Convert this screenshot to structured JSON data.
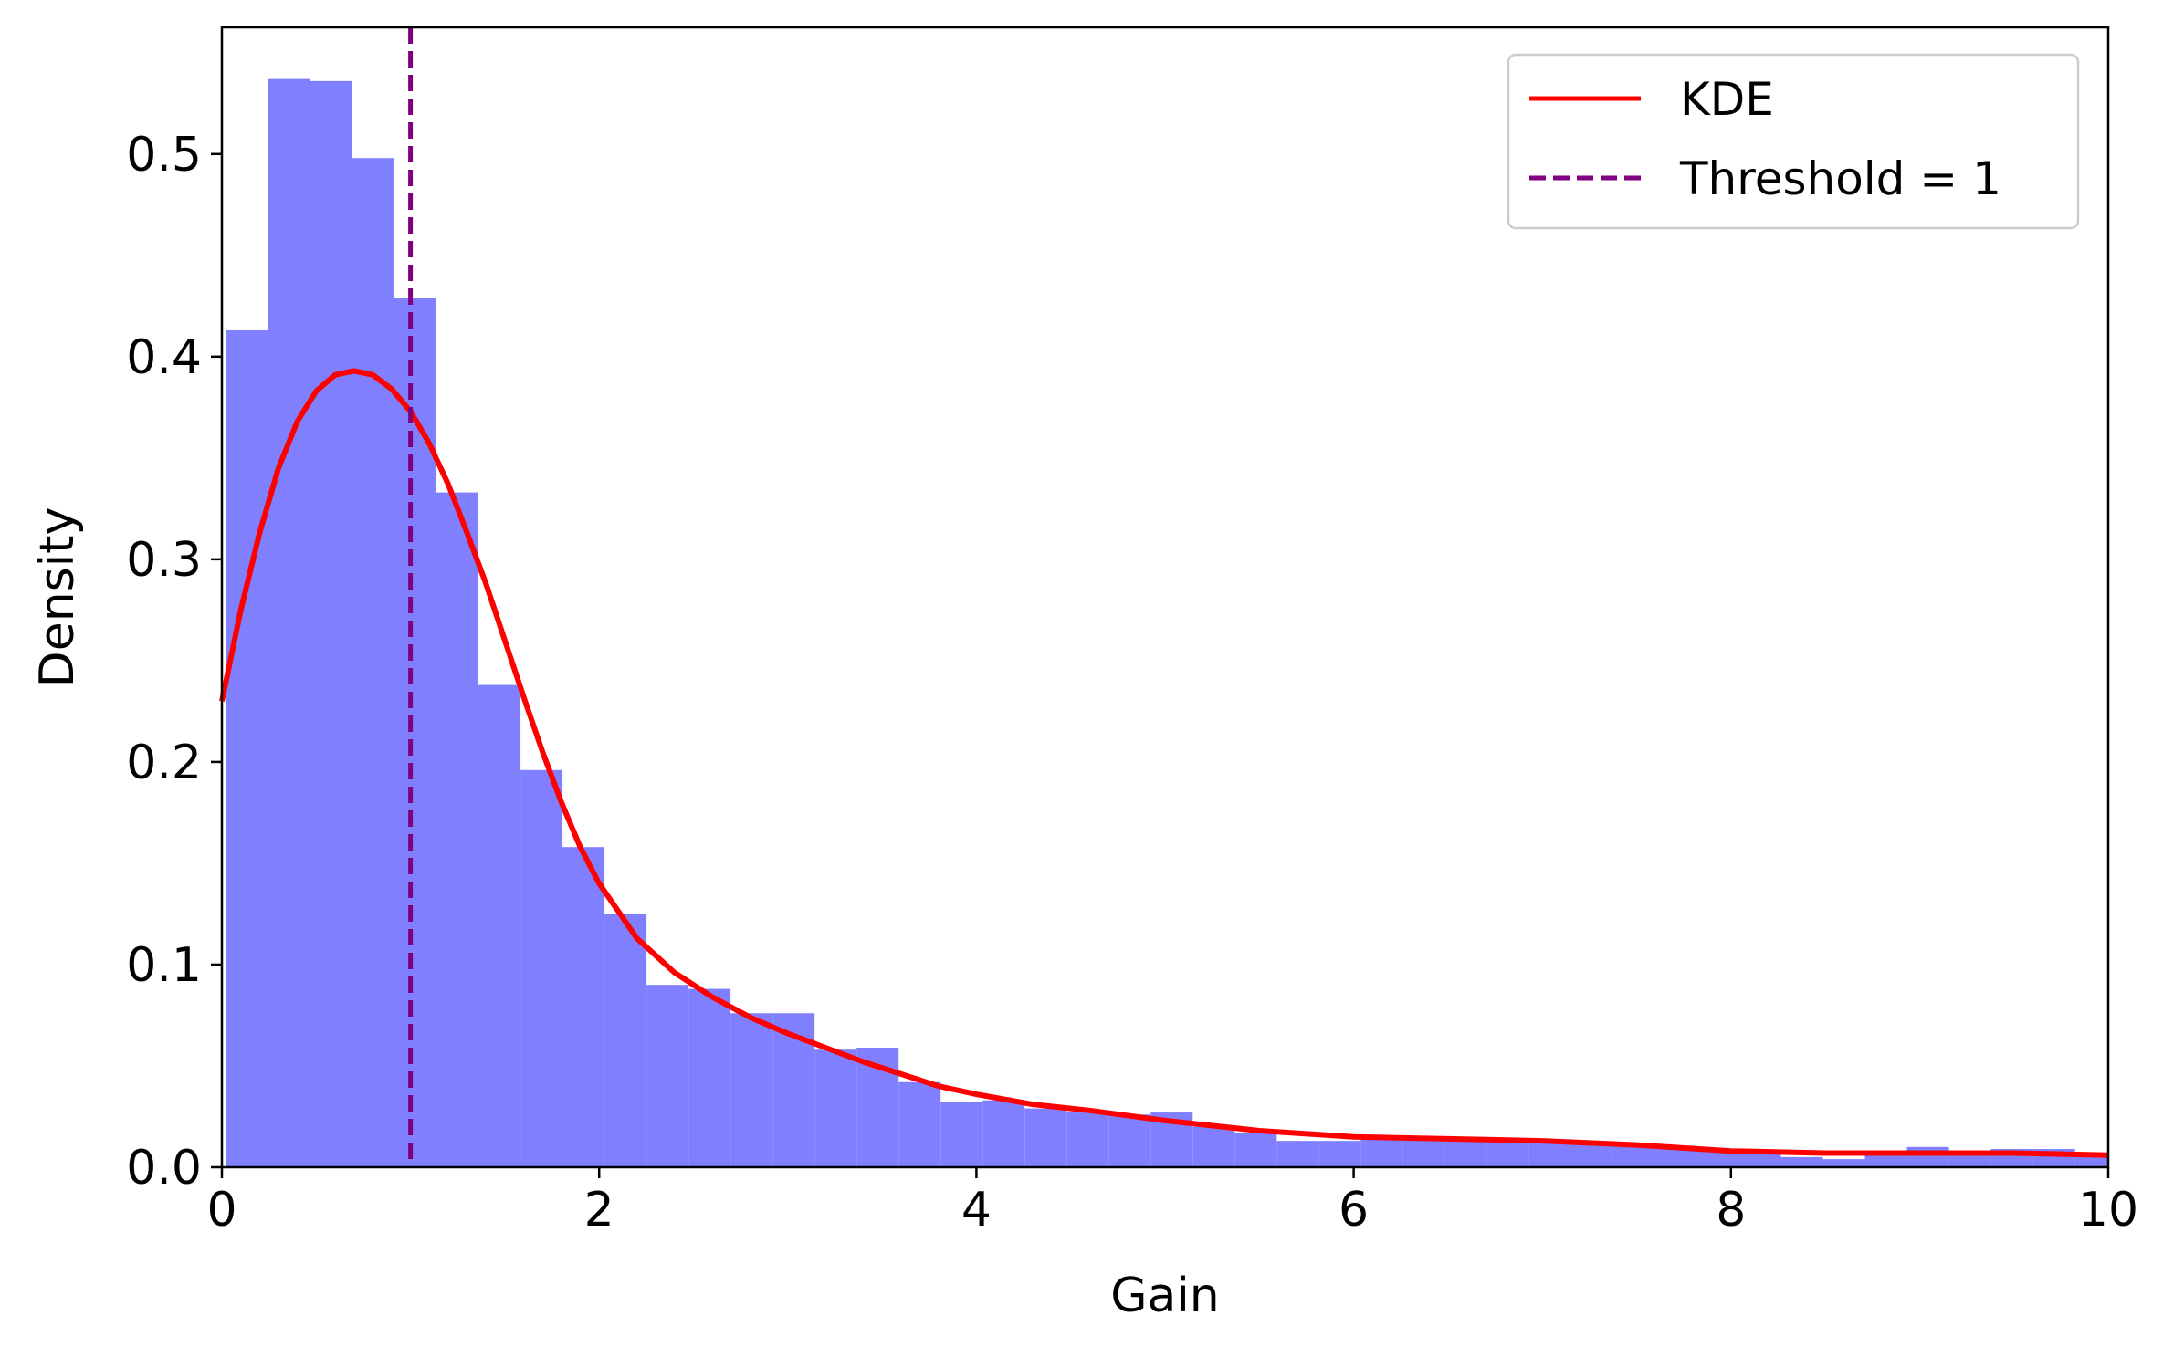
{
  "chart_data": {
    "type": "bar",
    "xlabel": "Gain",
    "ylabel": "Density",
    "xlim": [
      0,
      10
    ],
    "ylim": [
      0,
      0.5625
    ],
    "xticks": [
      0,
      2,
      4,
      6,
      8,
      10
    ],
    "yticks": [
      0.0,
      0.1,
      0.2,
      0.3,
      0.4,
      0.5
    ],
    "grid": false,
    "legend_position": "top-right",
    "histogram": {
      "name": "",
      "color": "#8080ff",
      "bin_edges": [
        0.0239,
        0.2467,
        0.4694,
        0.6921,
        0.9148,
        1.1376,
        1.3603,
        1.583,
        1.8057,
        2.0285,
        2.2512,
        2.4739,
        2.6966,
        2.9194,
        3.1421,
        3.3648,
        3.5876,
        3.8103,
        4.033,
        4.2557,
        4.4785,
        4.7012,
        4.9239,
        5.1466,
        5.3694,
        5.5921,
        5.8148,
        6.0375,
        6.2603,
        6.483,
        6.7057,
        6.9284,
        7.1512,
        7.3739,
        7.5966,
        7.8193,
        8.0421,
        8.2648,
        8.4875,
        8.7102,
        8.933,
        9.1557,
        9.3784,
        9.6011,
        9.8239,
        10.05
      ],
      "values": [
        0.413,
        0.537,
        0.536,
        0.498,
        0.429,
        0.333,
        0.238,
        0.196,
        0.158,
        0.125,
        0.09,
        0.088,
        0.076,
        0.076,
        0.058,
        0.059,
        0.042,
        0.032,
        0.033,
        0.029,
        0.027,
        0.026,
        0.027,
        0.02,
        0.017,
        0.013,
        0.013,
        0.014,
        0.015,
        0.013,
        0.014,
        0.012,
        0.012,
        0.011,
        0.009,
        0.008,
        0.007,
        0.005,
        0.004,
        0.007,
        0.01,
        0.006,
        0.009,
        0.009,
        0.005
      ]
    },
    "series": [
      {
        "name": "KDE",
        "type": "line",
        "color": "#ff0000",
        "x": [
          0,
          0.1,
          0.2,
          0.3,
          0.4,
          0.5,
          0.6,
          0.7,
          0.75,
          0.8,
          0.9,
          1.0,
          1.1,
          1.2,
          1.3,
          1.4,
          1.5,
          1.6,
          1.7,
          1.8,
          1.9,
          2.0,
          2.2,
          2.4,
          2.6,
          2.8,
          3.0,
          3.2,
          3.4,
          3.6,
          3.8,
          4.0,
          4.3,
          4.6,
          5.0,
          5.5,
          6.0,
          6.5,
          7.0,
          7.5,
          8.0,
          8.5,
          9.0,
          9.5,
          10.0
        ],
        "y": [
          0.23,
          0.275,
          0.313,
          0.345,
          0.368,
          0.383,
          0.391,
          0.393,
          0.392,
          0.391,
          0.384,
          0.373,
          0.357,
          0.337,
          0.313,
          0.288,
          0.26,
          0.232,
          0.205,
          0.18,
          0.158,
          0.14,
          0.113,
          0.096,
          0.084,
          0.074,
          0.066,
          0.059,
          0.052,
          0.046,
          0.04,
          0.036,
          0.031,
          0.028,
          0.023,
          0.018,
          0.015,
          0.014,
          0.013,
          0.011,
          0.008,
          0.007,
          0.007,
          0.007,
          0.006
        ]
      },
      {
        "name": "Threshold = 1",
        "type": "vline",
        "color": "#800080",
        "x": 1
      }
    ]
  }
}
